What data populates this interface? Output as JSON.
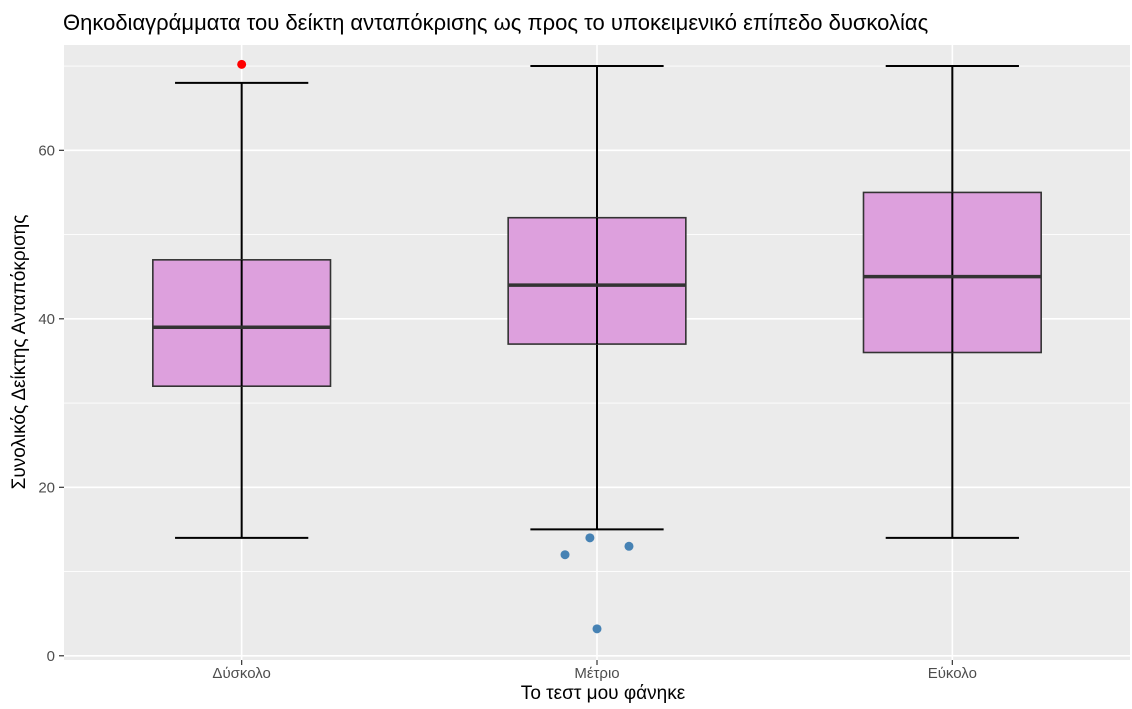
{
  "chart_data": {
    "type": "boxplot",
    "title": "Θηκοδιαγράμματα του δείκτη ανταπόκρισης ως προς το υποκειμενικό επίπεδο δυσκολίας",
    "xlabel": "Το τεστ μου φάνηκε",
    "ylabel": "Συνολικός Δείκτης Ανταπόκρισης",
    "categories": [
      "Δύσκολο",
      "Μέτριο",
      "Εύκολο"
    ],
    "ylim": [
      -0.5,
      72.5
    ],
    "yticks": [
      0,
      20,
      40,
      60
    ],
    "grid": true,
    "box_fill": "#dda0dd",
    "box_stroke": "#333333",
    "panel_background": "#ebebeb",
    "boxes": [
      {
        "category": "Δύσκολο",
        "whisker_low": 14,
        "q1": 32,
        "median": 39,
        "q3": 47,
        "whisker_high": 68,
        "outliers": [
          {
            "offset": 0.0,
            "y": 70.2,
            "color": "#ff0000"
          }
        ]
      },
      {
        "category": "Μέτριο",
        "whisker_low": 15,
        "q1": 37,
        "median": 44,
        "q3": 52,
        "whisker_high": 70,
        "outliers": [
          {
            "offset": -0.09,
            "y": 12,
            "color": "#4682b4"
          },
          {
            "offset": -0.02,
            "y": 14,
            "color": "#4682b4"
          },
          {
            "offset": 0.09,
            "y": 13,
            "color": "#4682b4"
          },
          {
            "offset": 0.0,
            "y": 3.2,
            "color": "#4682b4"
          }
        ]
      },
      {
        "category": "Εύκολο",
        "whisker_low": 14,
        "q1": 36,
        "median": 45,
        "q3": 55,
        "whisker_high": 70,
        "outliers": []
      }
    ]
  }
}
